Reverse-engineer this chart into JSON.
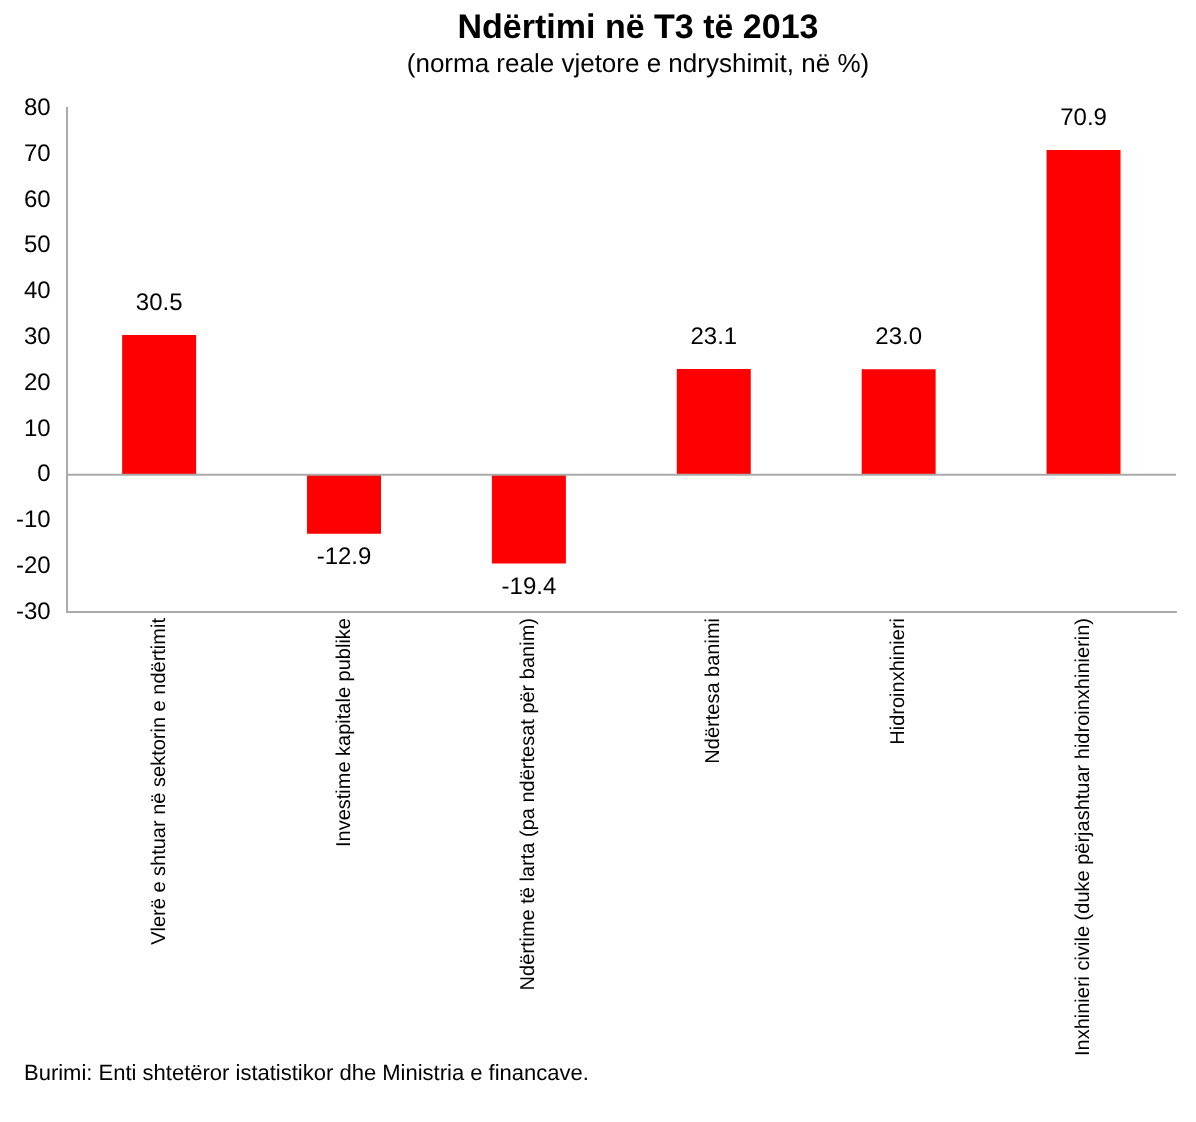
{
  "chart_data": {
    "type": "bar",
    "title": "Ndërtimi në T3 të 2013",
    "subtitle": "(norma reale vjetore e ndryshimit, në %)",
    "categories": [
      "Vlerë e shtuar në sektorin e ndërtimit",
      "Investime kapitale publike",
      "Ndërtime të larta (pa ndërtesat për banim)",
      "Ndërtesa banimi",
      "Hidroinxhinieri",
      "Inxhinieri civile (duke përjashtuar hidroinxhinierin)"
    ],
    "values": [
      30.5,
      -12.9,
      -19.4,
      23.1,
      23.0,
      70.9
    ],
    "value_labels": [
      "30.5",
      "-12.9",
      "-19.4",
      "23.1",
      "23.0",
      "70.9"
    ],
    "color": "#ff0000",
    "ylim": [
      -30,
      80
    ],
    "yticks": [
      -30,
      -20,
      -10,
      0,
      10,
      20,
      30,
      40,
      50,
      60,
      70,
      80
    ],
    "grid": false,
    "legend": false,
    "ref_lines": [
      {
        "axis": "y",
        "value": 0,
        "color": "#aaaaaa"
      }
    ],
    "annotations": [
      "Burimi: Enti shtetëror istatistikor dhe Ministria e financave."
    ]
  }
}
